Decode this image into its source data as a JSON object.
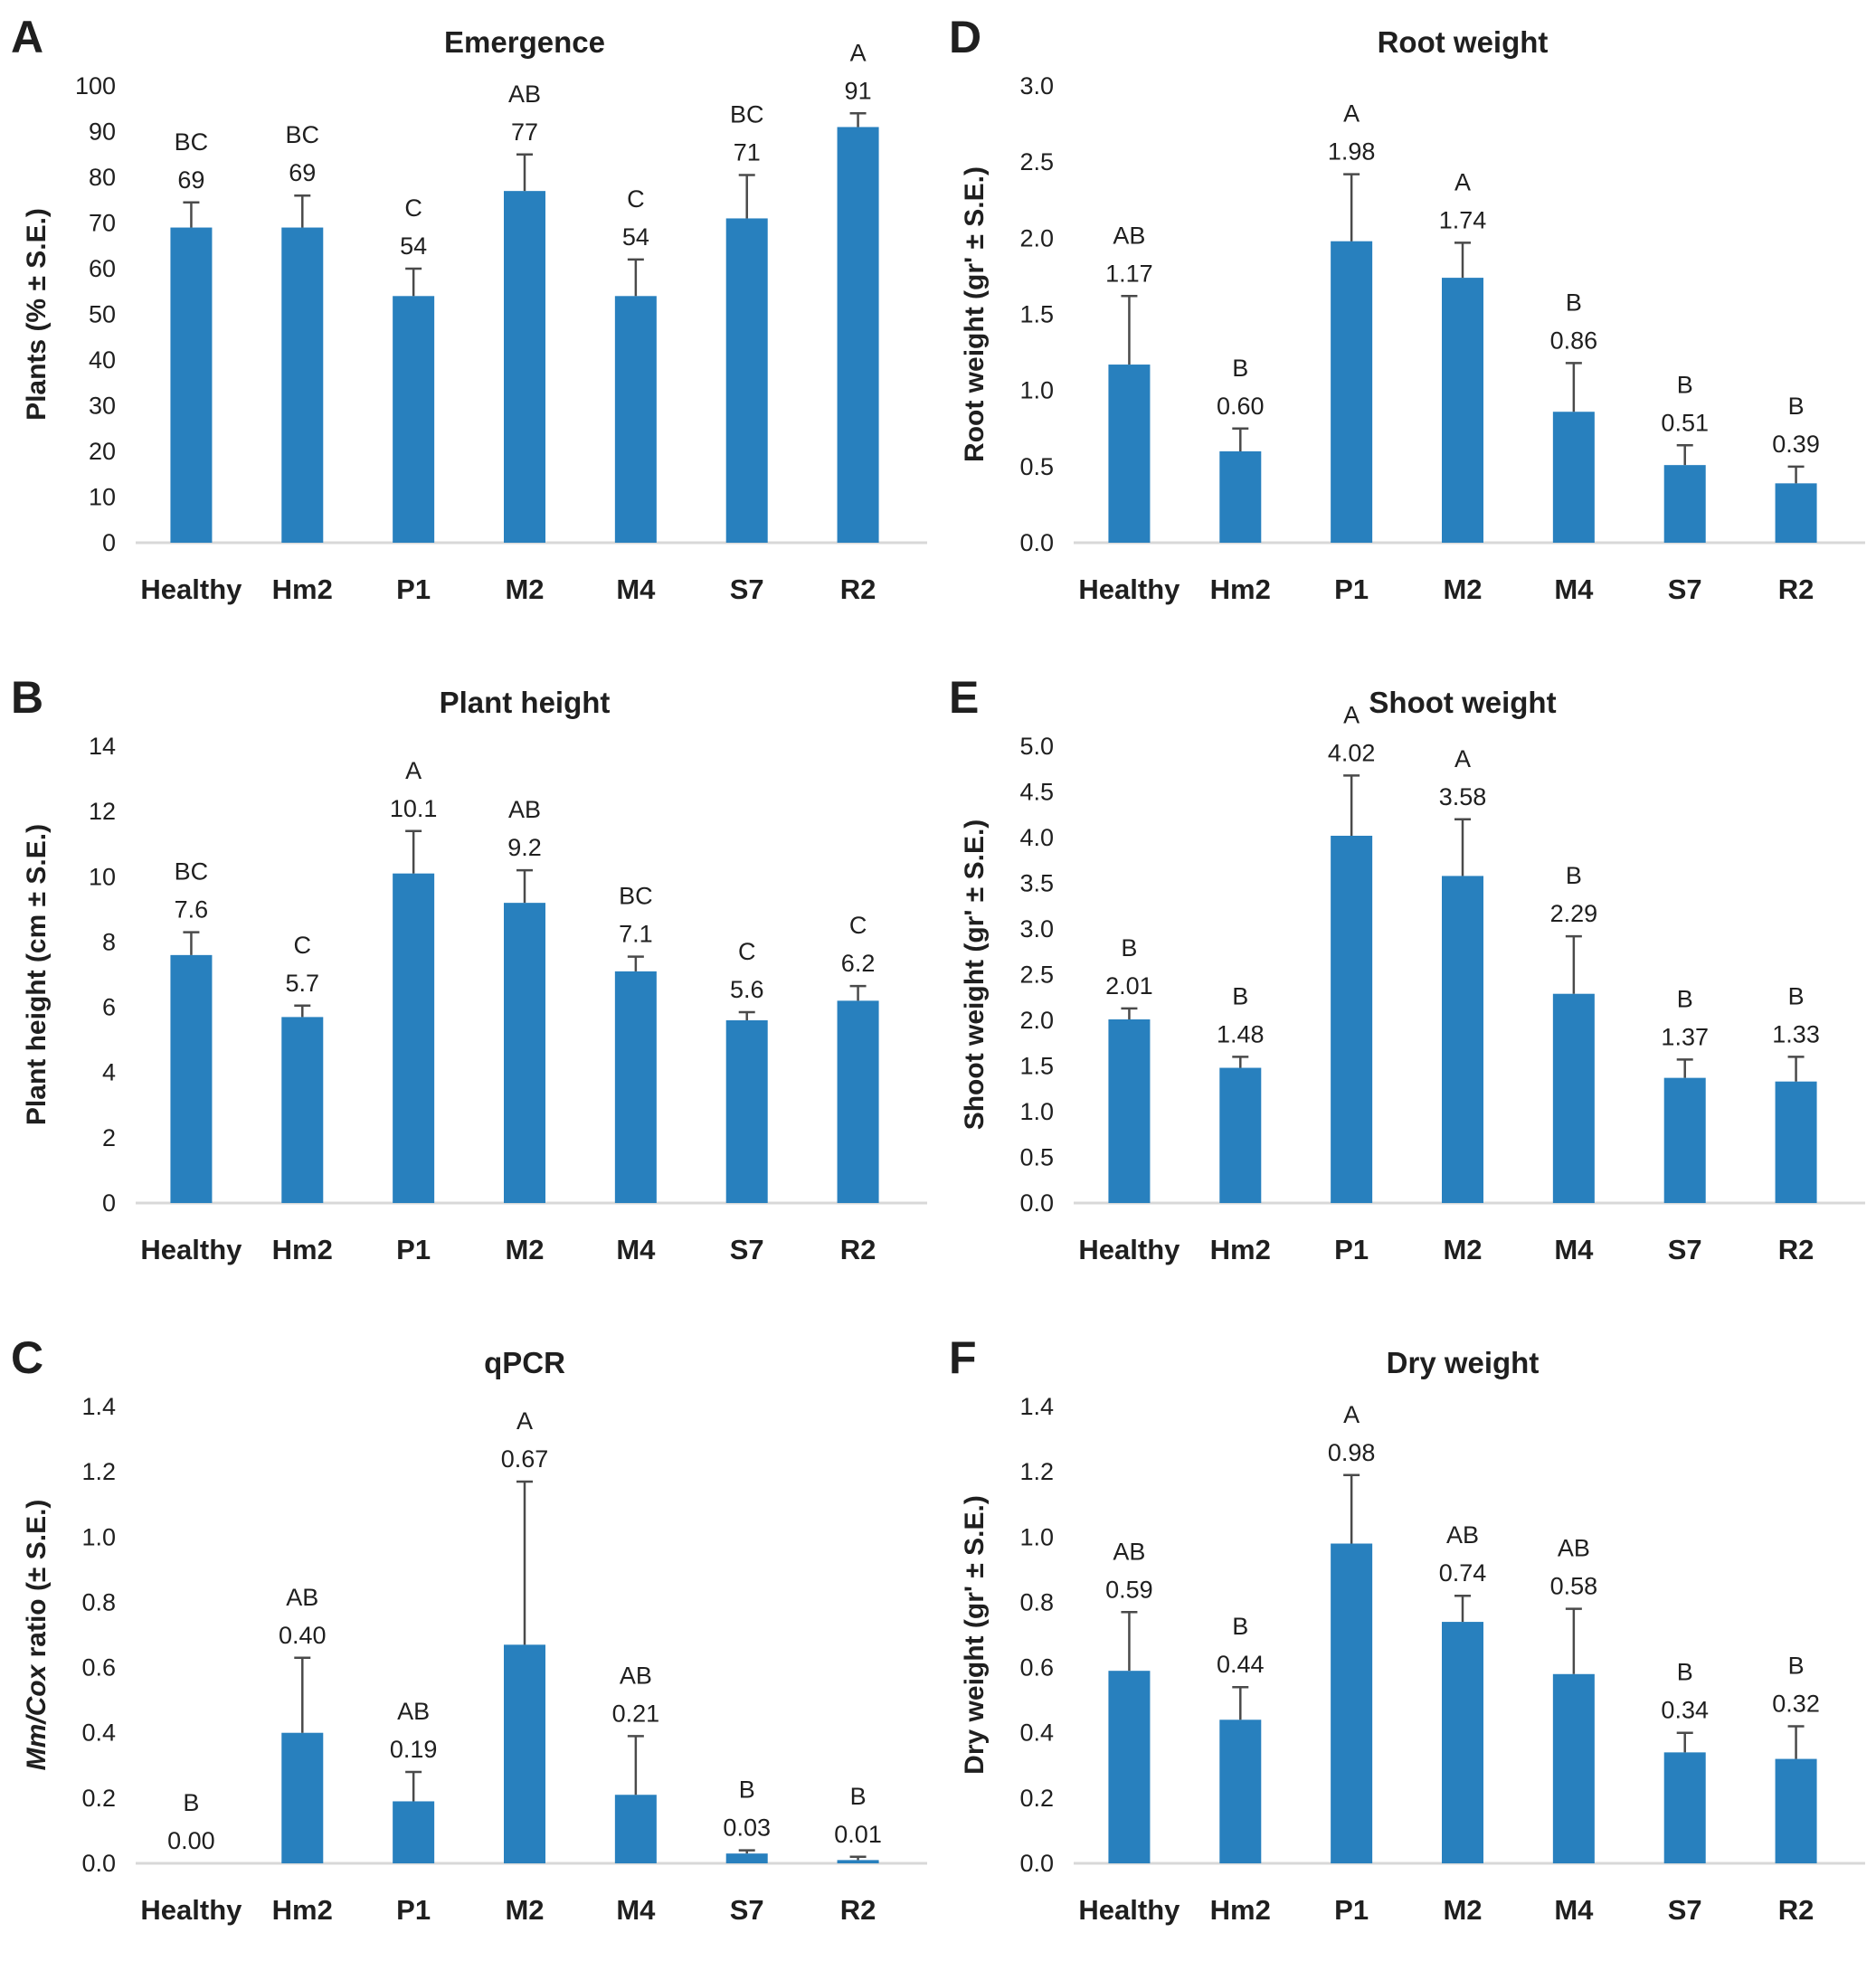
{
  "figure": {
    "layout": "2 columns x 3 rows of bar charts",
    "bar_color": "#2880be",
    "error_bar_color": "#4a4a4a",
    "axis_line_color": "#d8d8d8",
    "text_color": "#1f1f1f",
    "background": "#ffffff",
    "shared_categories": [
      "Healthy",
      "Hm2",
      "P1",
      "M2",
      "M4",
      "S7",
      "R2"
    ]
  },
  "chart_data": [
    {
      "type": "bar",
      "panel": "A",
      "title": "Emergence",
      "ylabel": "Plants (% ± S.E.)",
      "ylabel_parts": [
        {
          "text": "Plants (% ± S.E.)",
          "italic": false
        }
      ],
      "categories": [
        "Healthy",
        "Hm2",
        "P1",
        "M2",
        "M4",
        "S7",
        "R2"
      ],
      "values": [
        69,
        69,
        54,
        77,
        54,
        71,
        91
      ],
      "errors_plus": [
        5.5,
        7,
        6,
        8,
        8,
        9.5,
        3
      ],
      "value_labels": [
        "69",
        "69",
        "54",
        "77",
        "54",
        "71",
        "91"
      ],
      "sig_letters": [
        "BC",
        "BC",
        "C",
        "AB",
        "C",
        "BC",
        "A"
      ],
      "ylim": [
        0,
        100
      ],
      "ytick_labels": [
        "0",
        "10",
        "20",
        "30",
        "40",
        "50",
        "60",
        "70",
        "80",
        "90",
        "100"
      ],
      "grid": false,
      "legend": "none"
    },
    {
      "type": "bar",
      "panel": "D",
      "title": "Root weight",
      "ylabel": "Root weight (gr' ± S.E.)",
      "ylabel_parts": [
        {
          "text": "Root weight (gr' ± S.E.)",
          "italic": false
        }
      ],
      "categories": [
        "Healthy",
        "Hm2",
        "P1",
        "M2",
        "M4",
        "S7",
        "R2"
      ],
      "values": [
        1.17,
        0.6,
        1.98,
        1.74,
        0.86,
        0.51,
        0.39
      ],
      "errors_plus": [
        0.45,
        0.15,
        0.44,
        0.23,
        0.32,
        0.13,
        0.11
      ],
      "value_labels": [
        "1.17",
        "0.60",
        "1.98",
        "1.74",
        "0.86",
        "0.51",
        "0.39"
      ],
      "sig_letters": [
        "AB",
        "B",
        "A",
        "A",
        "B",
        "B",
        "B"
      ],
      "ylim": [
        0,
        3.0
      ],
      "ytick_labels": [
        "0.0",
        "0.5",
        "1.0",
        "1.5",
        "2.0",
        "2.5",
        "3.0"
      ],
      "grid": false,
      "legend": "none"
    },
    {
      "type": "bar",
      "panel": "B",
      "title": "Plant height",
      "ylabel": "Plant height (cm ± S.E.)",
      "ylabel_parts": [
        {
          "text": "Plant height (cm ± S.E.)",
          "italic": false
        }
      ],
      "categories": [
        "Healthy",
        "Hm2",
        "P1",
        "M2",
        "M4",
        "S7",
        "R2"
      ],
      "values": [
        7.6,
        5.7,
        10.1,
        9.2,
        7.1,
        5.6,
        6.2
      ],
      "errors_plus": [
        0.7,
        0.35,
        1.3,
        1.0,
        0.45,
        0.25,
        0.45
      ],
      "value_labels": [
        "7.6",
        "5.7",
        "10.1",
        "9.2",
        "7.1",
        "5.6",
        "6.2"
      ],
      "sig_letters": [
        "BC",
        "C",
        "A",
        "AB",
        "BC",
        "C",
        "C"
      ],
      "ylim": [
        0,
        14
      ],
      "ytick_labels": [
        "0",
        "2",
        "4",
        "6",
        "8",
        "10",
        "12",
        "14"
      ],
      "grid": false,
      "legend": "none"
    },
    {
      "type": "bar",
      "panel": "E",
      "title": "Shoot weight",
      "ylabel": "Shoot weight (gr' ± S.E.)",
      "ylabel_parts": [
        {
          "text": "Shoot weight (gr' ± S.E.)",
          "italic": false
        }
      ],
      "categories": [
        "Healthy",
        "Hm2",
        "P1",
        "M2",
        "M4",
        "S7",
        "R2"
      ],
      "values": [
        2.01,
        1.48,
        4.02,
        3.58,
        2.29,
        1.37,
        1.33
      ],
      "errors_plus": [
        0.12,
        0.12,
        0.66,
        0.62,
        0.63,
        0.2,
        0.27
      ],
      "value_labels": [
        "2.01",
        "1.48",
        "4.02",
        "3.58",
        "2.29",
        "1.37",
        "1.33"
      ],
      "sig_letters": [
        "B",
        "B",
        "A",
        "A",
        "B",
        "B",
        "B"
      ],
      "ylim": [
        0,
        5.0
      ],
      "ytick_labels": [
        "0.0",
        "0.5",
        "1.0",
        "1.5",
        "2.0",
        "2.5",
        "3.0",
        "3.5",
        "4.0",
        "4.5",
        "5.0"
      ],
      "grid": false,
      "legend": "none"
    },
    {
      "type": "bar",
      "panel": "C",
      "title": "qPCR",
      "ylabel": "Mm/Cox ratio (± S.E.)",
      "ylabel_parts": [
        {
          "text": "Mm/Cox",
          "italic": true
        },
        {
          "text": " ratio (± S.E.)",
          "italic": false
        }
      ],
      "categories": [
        "Healthy",
        "Hm2",
        "P1",
        "M2",
        "M4",
        "S7",
        "R2"
      ],
      "values": [
        0.0,
        0.4,
        0.19,
        0.67,
        0.21,
        0.03,
        0.01
      ],
      "errors_plus": [
        0,
        0.23,
        0.09,
        0.5,
        0.18,
        0.01,
        0.01
      ],
      "value_labels": [
        "0.00",
        "0.40",
        "0.19",
        "0.67",
        "0.21",
        "0.03",
        "0.01"
      ],
      "sig_letters": [
        "B",
        "AB",
        "AB",
        "A",
        "AB",
        "B",
        "B"
      ],
      "ylim": [
        0,
        1.4
      ],
      "ytick_labels": [
        "0.0",
        "0.2",
        "0.4",
        "0.6",
        "0.8",
        "1.0",
        "1.2",
        "1.4"
      ],
      "grid": false,
      "legend": "none"
    },
    {
      "type": "bar",
      "panel": "F",
      "title": "Dry weight",
      "ylabel": "Dry weight (gr' ± S.E.)",
      "ylabel_parts": [
        {
          "text": "Dry weight (gr' ± S.E.)",
          "italic": false
        }
      ],
      "categories": [
        "Healthy",
        "Hm2",
        "P1",
        "M2",
        "M4",
        "S7",
        "R2"
      ],
      "values": [
        0.59,
        0.44,
        0.98,
        0.74,
        0.58,
        0.34,
        0.32
      ],
      "errors_plus": [
        0.18,
        0.1,
        0.21,
        0.08,
        0.2,
        0.06,
        0.1
      ],
      "value_labels": [
        "0.59",
        "0.44",
        "0.98",
        "0.74",
        "0.58",
        "0.34",
        "0.32"
      ],
      "sig_letters": [
        "AB",
        "B",
        "A",
        "AB",
        "AB",
        "B",
        "B"
      ],
      "ylim": [
        0,
        1.4
      ],
      "ytick_labels": [
        "0.0",
        "0.2",
        "0.4",
        "0.6",
        "0.8",
        "1.0",
        "1.2",
        "1.4"
      ],
      "grid": false,
      "legend": "none"
    }
  ]
}
